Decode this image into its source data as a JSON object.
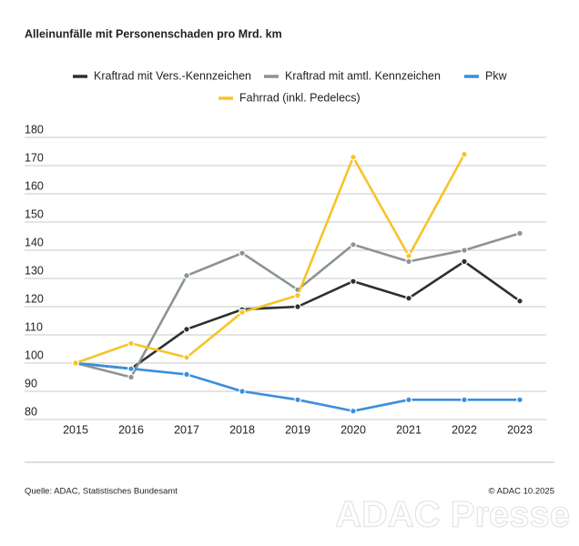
{
  "chart_data": {
    "type": "line",
    "title": "Alleinunfälle mit Personenschaden pro Mrd. km",
    "categories": [
      "2015",
      "2016",
      "2017",
      "2018",
      "2019",
      "2020",
      "2021",
      "2022",
      "2023"
    ],
    "series": [
      {
        "name": "Kraftrad mit Vers.-Kennzeichen",
        "color": "#2b3031",
        "values": [
          100,
          98,
          112,
          119,
          120,
          129,
          123,
          136,
          122
        ]
      },
      {
        "name": "Kraftrad mit amtl. Kennzeichen",
        "color": "#8b9494",
        "values": [
          100,
          95,
          131,
          139,
          126,
          142,
          136,
          140,
          146
        ]
      },
      {
        "name": "Pkw",
        "color": "#3a8fdb",
        "values": [
          100,
          98,
          96,
          90,
          87,
          83,
          87,
          87,
          87
        ]
      },
      {
        "name": "Fahrrad (inkl. Pedelecs)",
        "color": "#f6c428",
        "values": [
          100,
          107,
          102,
          118,
          124,
          173,
          138,
          174,
          null
        ]
      }
    ],
    "ylim": [
      80,
      180
    ],
    "yticks": [
      80,
      90,
      100,
      110,
      120,
      130,
      140,
      150,
      160,
      170,
      180
    ],
    "grid": true,
    "source": "Quelle: ADAC, Statistisches Bundesamt",
    "copyright": "© ADAC 10.2025",
    "watermark": "ADAC Presse"
  }
}
